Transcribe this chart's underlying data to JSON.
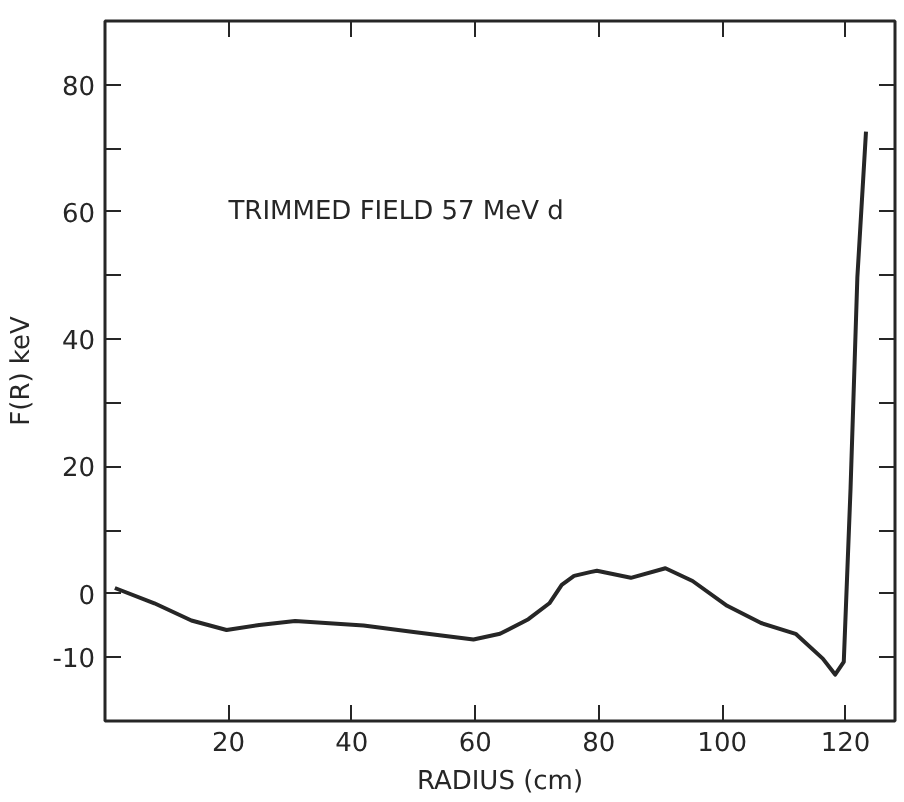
{
  "chart_data": {
    "type": "line",
    "xlabel": "RADIUS (cm)",
    "ylabel": "F(R) keV",
    "annotations": [
      "TRIMMED FIELD 57 MeV d"
    ],
    "x": [
      1.6,
      8,
      14,
      19.7,
      25,
      30.8,
      41.9,
      50,
      59.7,
      64,
      68.6,
      72,
      74,
      76,
      78.6,
      79.7,
      85.2,
      90.8,
      95.2,
      100.8,
      106.3,
      111.9,
      116.3,
      118.3,
      119.7,
      120.8,
      121.9,
      123.3
    ],
    "series": [
      {
        "color": "#262626",
        "values": [
          0.9,
          -1.5,
          -4.2,
          -5.7,
          -4.9,
          -4.3,
          -5,
          -6,
          -7.2,
          -6.3,
          -4,
          -1.5,
          1.4,
          2.8,
          3.4,
          3.6,
          2.5,
          4.0,
          2,
          -1.9,
          -4.6,
          -6.3,
          -10.2,
          -12.7,
          -10.7,
          16.6,
          49.7,
          72.6
        ]
      }
    ],
    "xlim": [
      0,
      128
    ],
    "ylim": [
      -20,
      90
    ],
    "xticks": [
      20,
      40,
      60,
      80,
      100,
      120
    ],
    "yticks": [
      -10,
      0,
      {
        "value": 10,
        "label": null
      },
      20,
      {
        "value": 30,
        "label": null
      },
      40,
      {
        "value": 50,
        "label": null
      },
      60,
      {
        "value": 70,
        "label": null
      },
      80
    ],
    "grid": false,
    "line_style": "solid"
  }
}
